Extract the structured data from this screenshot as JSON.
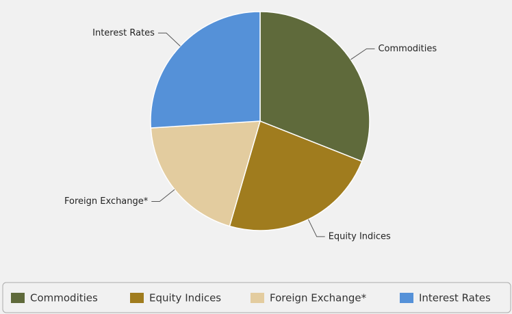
{
  "chart_data": {
    "type": "pie",
    "categories": [
      "Commodities",
      "Equity Indices",
      "Foreign Exchange*",
      "Interest Rates"
    ],
    "values": [
      31,
      23.5,
      19.5,
      26
    ],
    "colors": [
      "#5f6a3b",
      "#a07c1e",
      "#e3cc9f",
      "#5591d8"
    ],
    "legend": "bottom"
  }
}
